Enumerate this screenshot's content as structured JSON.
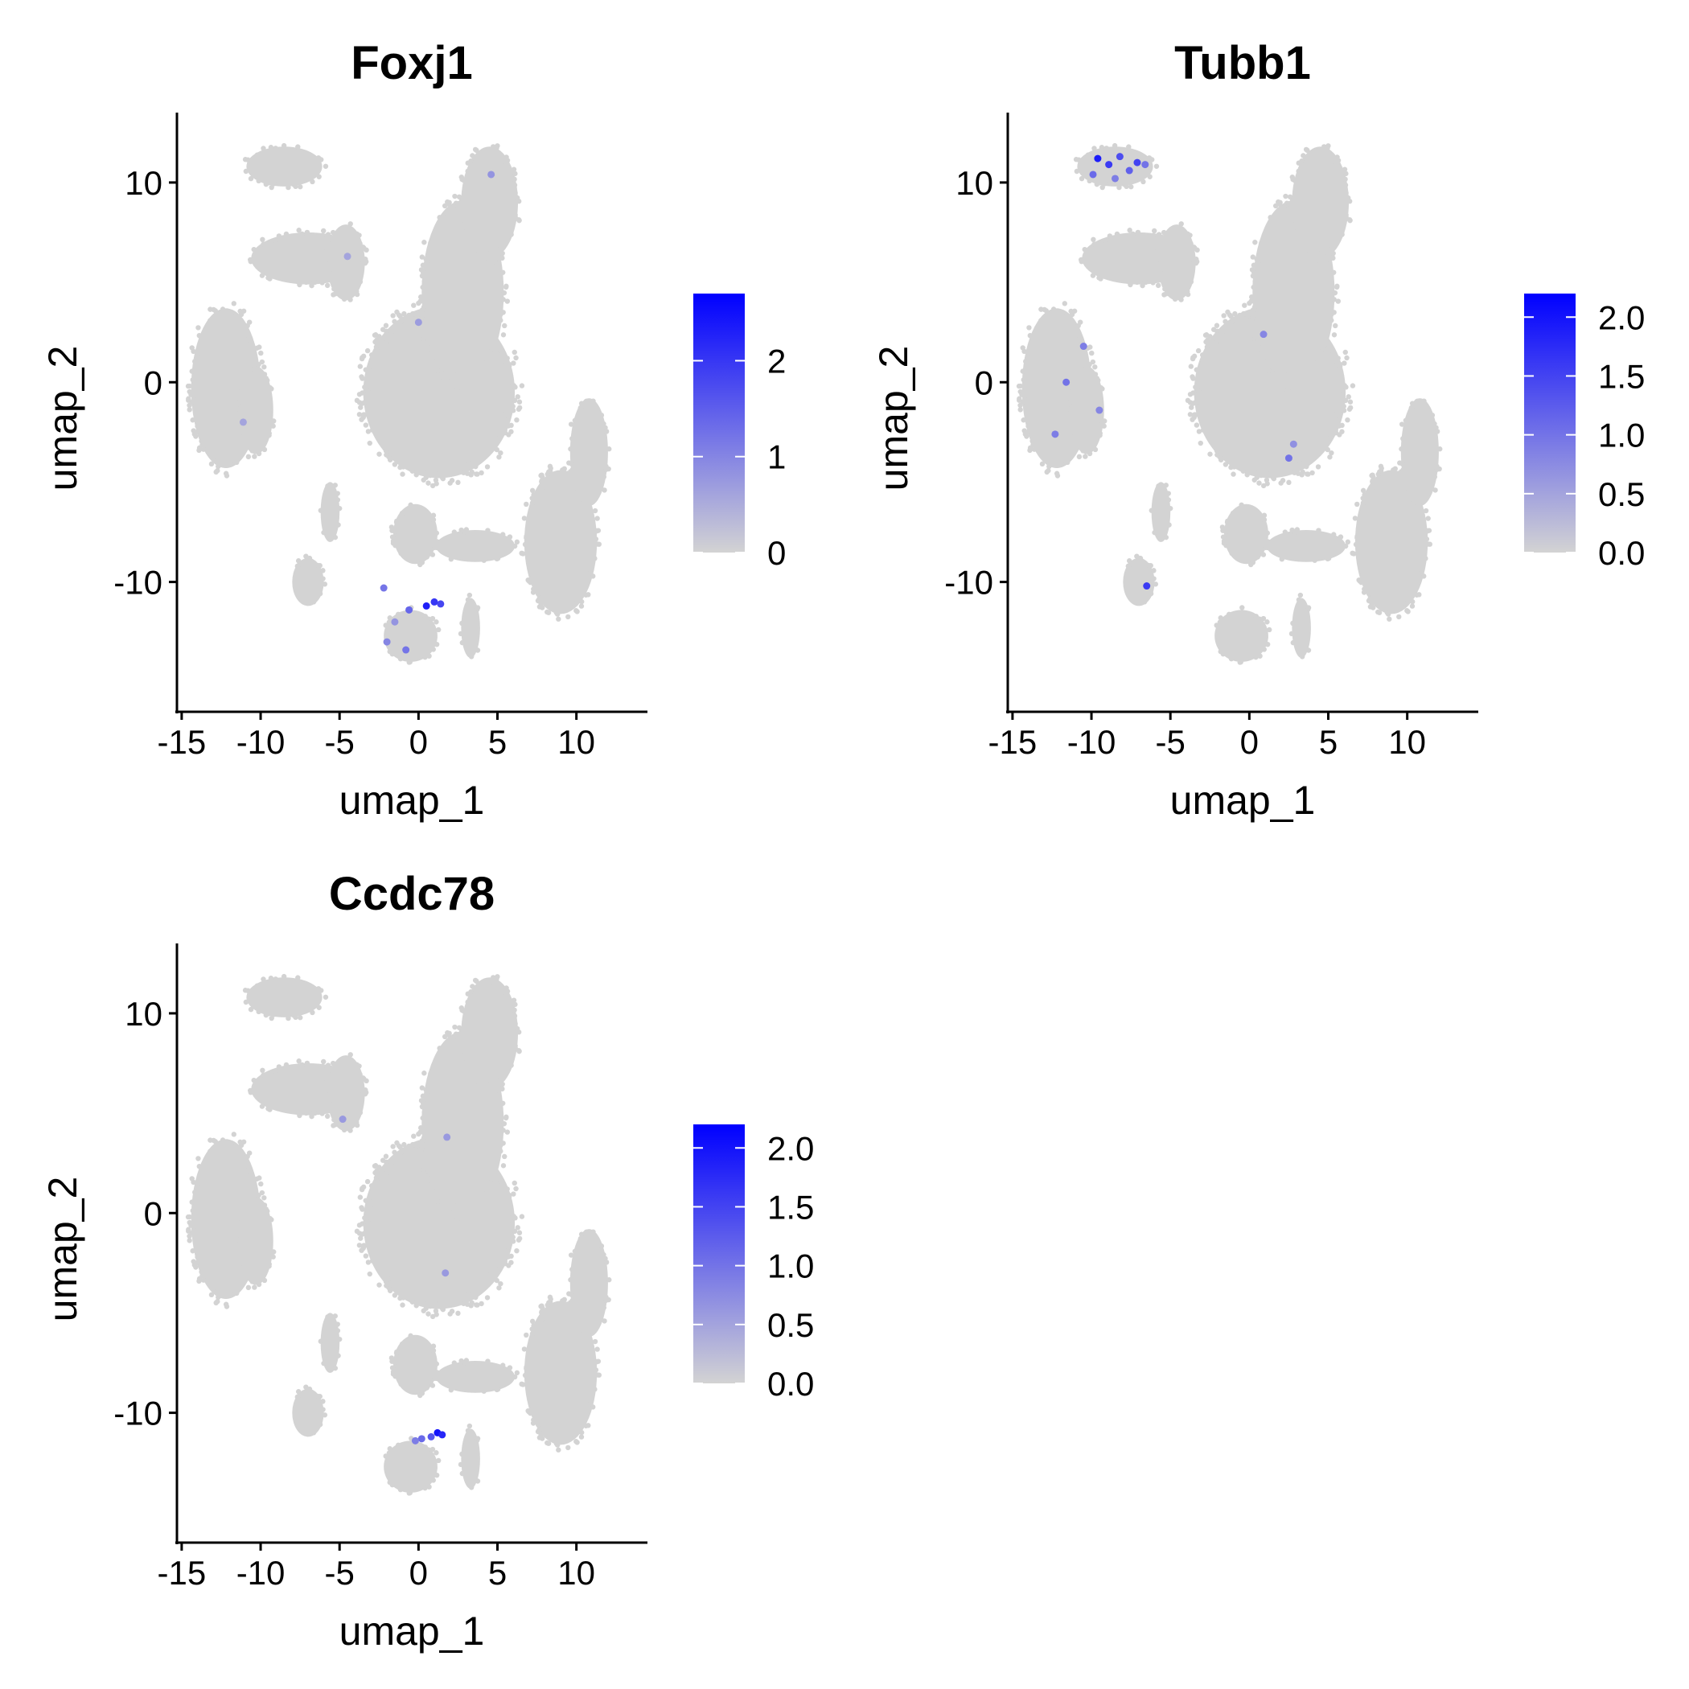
{
  "figure": {
    "background": "#ffffff",
    "point_color_low": "#d3d3d3",
    "point_color_high": "#0000ff"
  },
  "chart_data": [
    {
      "type": "scatter",
      "title": "Foxj1",
      "xlabel": "umap_1",
      "ylabel": "umap_2",
      "xlim": [
        -15.3,
        14.5
      ],
      "ylim": [
        -16.5,
        13.5
      ],
      "xticks": [
        -15,
        -10,
        -5,
        0,
        5,
        10
      ],
      "yticks": [
        -10,
        0,
        10
      ],
      "legend": {
        "position": "right",
        "ticks": [
          0,
          1,
          2
        ],
        "tick_labels": [
          "0",
          "1",
          "2"
        ],
        "max": 2.7
      },
      "clusters": [
        {
          "name": "top-left",
          "cx": -8.5,
          "cy": 10.8,
          "rx": 2.4,
          "ry": 1.0
        },
        {
          "name": "upper-left-mid",
          "cx": -7.0,
          "cy": 6.2,
          "rx": 3.6,
          "ry": 1.3
        },
        {
          "name": "upper-left-tail",
          "cx": -4.6,
          "cy": 6.0,
          "rx": 1.2,
          "ry": 1.9
        },
        {
          "name": "left",
          "cx": -12.2,
          "cy": -0.3,
          "rx": 2.2,
          "ry": 4.0
        },
        {
          "name": "left-inner",
          "cx": -10.3,
          "cy": -1.4,
          "rx": 1.1,
          "ry": 2.2
        },
        {
          "name": "central-body",
          "cx": 1.3,
          "cy": -0.5,
          "rx": 4.8,
          "ry": 4.3
        },
        {
          "name": "central-neck",
          "cx": 2.8,
          "cy": 4.5,
          "rx": 2.6,
          "ry": 4.6
        },
        {
          "name": "central-top",
          "cx": 4.5,
          "cy": 9.0,
          "rx": 1.8,
          "ry": 2.8
        },
        {
          "name": "right-lower",
          "cx": 9.0,
          "cy": -8.0,
          "rx": 2.3,
          "ry": 3.6
        },
        {
          "name": "right-upper",
          "cx": 10.8,
          "cy": -3.5,
          "rx": 1.2,
          "ry": 2.7
        },
        {
          "name": "small-left-lower",
          "cx": -5.6,
          "cy": -6.5,
          "rx": 0.6,
          "ry": 1.5
        },
        {
          "name": "small-left-bottom",
          "cx": -7.0,
          "cy": -10.0,
          "rx": 1.0,
          "ry": 1.2
        },
        {
          "name": "mid-lower",
          "cx": -0.2,
          "cy": -7.6,
          "rx": 1.4,
          "ry": 1.5
        },
        {
          "name": "bottom",
          "cx": -0.5,
          "cy": -12.7,
          "rx": 1.7,
          "ry": 1.3
        },
        {
          "name": "bridge",
          "cx": 3.6,
          "cy": -8.2,
          "rx": 2.5,
          "ry": 0.8
        },
        {
          "name": "small-right-bottom",
          "cx": 3.3,
          "cy": -12.3,
          "rx": 0.6,
          "ry": 1.5
        }
      ],
      "highlights": [
        {
          "x": 0.5,
          "y": -11.2,
          "v": 2.3
        },
        {
          "x": 1.0,
          "y": -11.0,
          "v": 2.0
        },
        {
          "x": 1.4,
          "y": -11.1,
          "v": 1.8
        },
        {
          "x": -0.6,
          "y": -11.4,
          "v": 1.4
        },
        {
          "x": -2.2,
          "y": -10.3,
          "v": 1.2
        },
        {
          "x": -2.0,
          "y": -13.0,
          "v": 1.0
        },
        {
          "x": -0.8,
          "y": -13.4,
          "v": 1.2
        },
        {
          "x": -1.5,
          "y": -12.0,
          "v": 0.8
        },
        {
          "x": 4.6,
          "y": 10.4,
          "v": 0.8
        },
        {
          "x": 0.0,
          "y": 3.0,
          "v": 0.7
        },
        {
          "x": -4.5,
          "y": 6.3,
          "v": 0.6
        },
        {
          "x": -11.1,
          "y": -2.0,
          "v": 0.6
        }
      ]
    },
    {
      "type": "scatter",
      "title": "Tubb1",
      "xlabel": "umap_1",
      "ylabel": "umap_2",
      "xlim": [
        -15.3,
        14.5
      ],
      "ylim": [
        -16.5,
        13.5
      ],
      "xticks": [
        -15,
        -10,
        -5,
        0,
        5,
        10
      ],
      "yticks": [
        -10,
        0,
        10
      ],
      "legend": {
        "position": "right",
        "ticks": [
          0,
          0.5,
          1.0,
          1.5,
          2.0
        ],
        "tick_labels": [
          "0.0",
          "0.5",
          "1.0",
          "1.5",
          "2.0"
        ],
        "max": 2.2
      },
      "clusters": [
        {
          "name": "top-left",
          "cx": -8.5,
          "cy": 10.8,
          "rx": 2.4,
          "ry": 1.0
        },
        {
          "name": "upper-left-mid",
          "cx": -7.0,
          "cy": 6.2,
          "rx": 3.6,
          "ry": 1.3
        },
        {
          "name": "upper-left-tail",
          "cx": -4.6,
          "cy": 6.0,
          "rx": 1.2,
          "ry": 1.9
        },
        {
          "name": "left",
          "cx": -12.2,
          "cy": -0.3,
          "rx": 2.2,
          "ry": 4.0
        },
        {
          "name": "left-inner",
          "cx": -10.3,
          "cy": -1.4,
          "rx": 1.1,
          "ry": 2.2
        },
        {
          "name": "central-body",
          "cx": 1.3,
          "cy": -0.5,
          "rx": 4.8,
          "ry": 4.3
        },
        {
          "name": "central-neck",
          "cx": 2.8,
          "cy": 4.5,
          "rx": 2.6,
          "ry": 4.6
        },
        {
          "name": "central-top",
          "cx": 4.5,
          "cy": 9.0,
          "rx": 1.8,
          "ry": 2.8
        },
        {
          "name": "right-lower",
          "cx": 9.0,
          "cy": -8.0,
          "rx": 2.3,
          "ry": 3.6
        },
        {
          "name": "right-upper",
          "cx": 10.8,
          "cy": -3.5,
          "rx": 1.2,
          "ry": 2.7
        },
        {
          "name": "small-left-lower",
          "cx": -5.6,
          "cy": -6.5,
          "rx": 0.6,
          "ry": 1.5
        },
        {
          "name": "small-left-bottom",
          "cx": -7.0,
          "cy": -10.0,
          "rx": 1.0,
          "ry": 1.2
        },
        {
          "name": "mid-lower",
          "cx": -0.2,
          "cy": -7.6,
          "rx": 1.4,
          "ry": 1.5
        },
        {
          "name": "bottom",
          "cx": -0.5,
          "cy": -12.7,
          "rx": 1.7,
          "ry": 1.3
        },
        {
          "name": "bridge",
          "cx": 3.6,
          "cy": -8.2,
          "rx": 2.5,
          "ry": 0.8
        },
        {
          "name": "small-right-bottom",
          "cx": 3.3,
          "cy": -12.3,
          "rx": 0.6,
          "ry": 1.5
        }
      ],
      "highlights": [
        {
          "x": -9.6,
          "y": 11.2,
          "v": 1.9
        },
        {
          "x": -8.9,
          "y": 10.9,
          "v": 1.6
        },
        {
          "x": -8.2,
          "y": 11.3,
          "v": 1.4
        },
        {
          "x": -7.6,
          "y": 10.6,
          "v": 1.2
        },
        {
          "x": -7.1,
          "y": 11.0,
          "v": 1.5
        },
        {
          "x": -6.6,
          "y": 10.9,
          "v": 1.0
        },
        {
          "x": -9.9,
          "y": 10.4,
          "v": 1.1
        },
        {
          "x": -8.5,
          "y": 10.2,
          "v": 0.9
        },
        {
          "x": -10.5,
          "y": 1.8,
          "v": 0.9
        },
        {
          "x": -11.6,
          "y": 0.0,
          "v": 1.0
        },
        {
          "x": -12.3,
          "y": -2.6,
          "v": 0.9
        },
        {
          "x": -9.5,
          "y": -1.4,
          "v": 0.8
        },
        {
          "x": 0.9,
          "y": 2.4,
          "v": 0.8
        },
        {
          "x": 2.5,
          "y": -3.8,
          "v": 1.0
        },
        {
          "x": 2.8,
          "y": -3.1,
          "v": 0.7
        },
        {
          "x": -6.5,
          "y": -10.2,
          "v": 1.6
        }
      ]
    },
    {
      "type": "scatter",
      "title": "Ccdc78",
      "xlabel": "umap_1",
      "ylabel": "umap_2",
      "xlim": [
        -15.3,
        14.5
      ],
      "ylim": [
        -16.5,
        13.5
      ],
      "xticks": [
        -15,
        -10,
        -5,
        0,
        5,
        10
      ],
      "yticks": [
        -10,
        0,
        10
      ],
      "legend": {
        "position": "right",
        "ticks": [
          0,
          0.5,
          1.0,
          1.5,
          2.0
        ],
        "tick_labels": [
          "0.0",
          "0.5",
          "1.0",
          "1.5",
          "2.0"
        ],
        "max": 2.2
      },
      "clusters": [
        {
          "name": "top-left",
          "cx": -8.5,
          "cy": 10.8,
          "rx": 2.4,
          "ry": 1.0
        },
        {
          "name": "upper-left-mid",
          "cx": -7.0,
          "cy": 6.2,
          "rx": 3.6,
          "ry": 1.3
        },
        {
          "name": "upper-left-tail",
          "cx": -4.6,
          "cy": 6.0,
          "rx": 1.2,
          "ry": 1.9
        },
        {
          "name": "left",
          "cx": -12.2,
          "cy": -0.3,
          "rx": 2.2,
          "ry": 4.0
        },
        {
          "name": "left-inner",
          "cx": -10.3,
          "cy": -1.4,
          "rx": 1.1,
          "ry": 2.2
        },
        {
          "name": "central-body",
          "cx": 1.3,
          "cy": -0.5,
          "rx": 4.8,
          "ry": 4.3
        },
        {
          "name": "central-neck",
          "cx": 2.8,
          "cy": 4.5,
          "rx": 2.6,
          "ry": 4.6
        },
        {
          "name": "central-top",
          "cx": 4.5,
          "cy": 9.0,
          "rx": 1.8,
          "ry": 2.8
        },
        {
          "name": "right-lower",
          "cx": 9.0,
          "cy": -8.0,
          "rx": 2.3,
          "ry": 3.6
        },
        {
          "name": "right-upper",
          "cx": 10.8,
          "cy": -3.5,
          "rx": 1.2,
          "ry": 2.7
        },
        {
          "name": "small-left-lower",
          "cx": -5.6,
          "cy": -6.5,
          "rx": 0.6,
          "ry": 1.5
        },
        {
          "name": "small-left-bottom",
          "cx": -7.0,
          "cy": -10.0,
          "rx": 1.0,
          "ry": 1.2
        },
        {
          "name": "mid-lower",
          "cx": -0.2,
          "cy": -7.6,
          "rx": 1.4,
          "ry": 1.5
        },
        {
          "name": "bottom",
          "cx": -0.5,
          "cy": -12.7,
          "rx": 1.7,
          "ry": 1.3
        },
        {
          "name": "bridge",
          "cx": 3.6,
          "cy": -8.2,
          "rx": 2.5,
          "ry": 0.8
        },
        {
          "name": "small-right-bottom",
          "cx": 3.3,
          "cy": -12.3,
          "rx": 0.6,
          "ry": 1.5
        }
      ],
      "highlights": [
        {
          "x": 1.2,
          "y": -11.0,
          "v": 2.0
        },
        {
          "x": 1.5,
          "y": -11.1,
          "v": 1.8
        },
        {
          "x": 0.8,
          "y": -11.2,
          "v": 1.3
        },
        {
          "x": 0.2,
          "y": -11.3,
          "v": 1.1
        },
        {
          "x": -0.2,
          "y": -11.4,
          "v": 0.9
        },
        {
          "x": -4.8,
          "y": 4.7,
          "v": 0.6
        },
        {
          "x": 1.8,
          "y": 3.8,
          "v": 0.6
        },
        {
          "x": 1.7,
          "y": -3.0,
          "v": 0.6
        }
      ]
    }
  ]
}
